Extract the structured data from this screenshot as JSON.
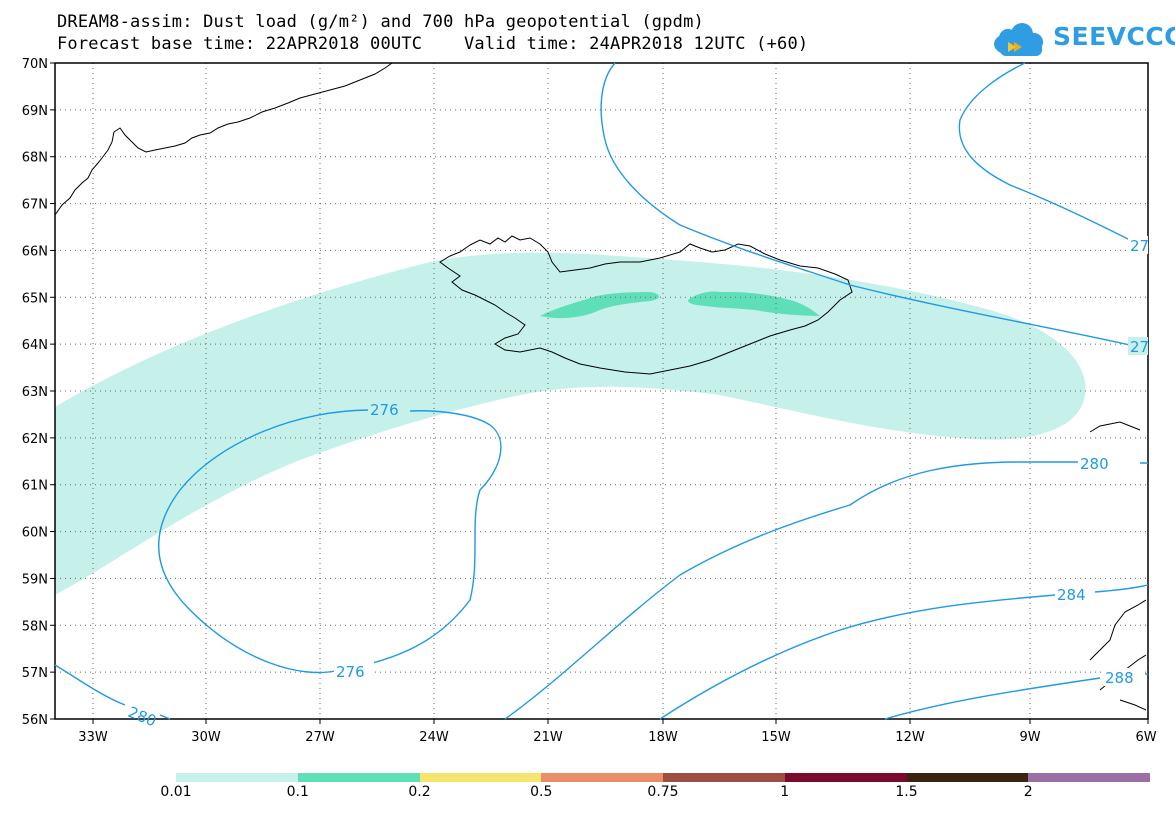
{
  "title": {
    "line1": "DREAM8-assim: Dust load (g/m²) and 700 hPa geopotential (gpdm)",
    "line2": "Forecast base time: 22APR2018 00UTC    Valid time: 24APR2018 12UTC (+60)"
  },
  "logo": {
    "text": "SEEVCCC",
    "color": "#2e9de4",
    "icon": "cloud-icon"
  },
  "map": {
    "lat_labels": [
      "70N",
      "69N",
      "68N",
      "67N",
      "66N",
      "65N",
      "64N",
      "63N",
      "62N",
      "61N",
      "60N",
      "59N",
      "58N",
      "57N",
      "56N"
    ],
    "lon_labels": [
      "33W",
      "30W",
      "27W",
      "24W",
      "21W",
      "18W",
      "15W",
      "12W",
      "9W",
      "6W"
    ],
    "contours": {
      "color": "#1f9ae6",
      "labels": [
        "276",
        "276",
        "280",
        "280",
        "284",
        "288",
        "27",
        "27"
      ]
    },
    "dust_colors": {
      "light": "#c6f0ea",
      "medium": "#5fdfb8"
    }
  },
  "legend": {
    "colors": [
      "#c6f0ea",
      "#5fdfb8",
      "#f5e56f",
      "#ea8e68",
      "#9e4e42",
      "#7c0a2c",
      "#3b2410",
      "#9b6fa6"
    ],
    "labels": [
      "0.01",
      "0.1",
      "0.2",
      "0.5",
      "0.75",
      "1",
      "1.5",
      "2"
    ]
  }
}
